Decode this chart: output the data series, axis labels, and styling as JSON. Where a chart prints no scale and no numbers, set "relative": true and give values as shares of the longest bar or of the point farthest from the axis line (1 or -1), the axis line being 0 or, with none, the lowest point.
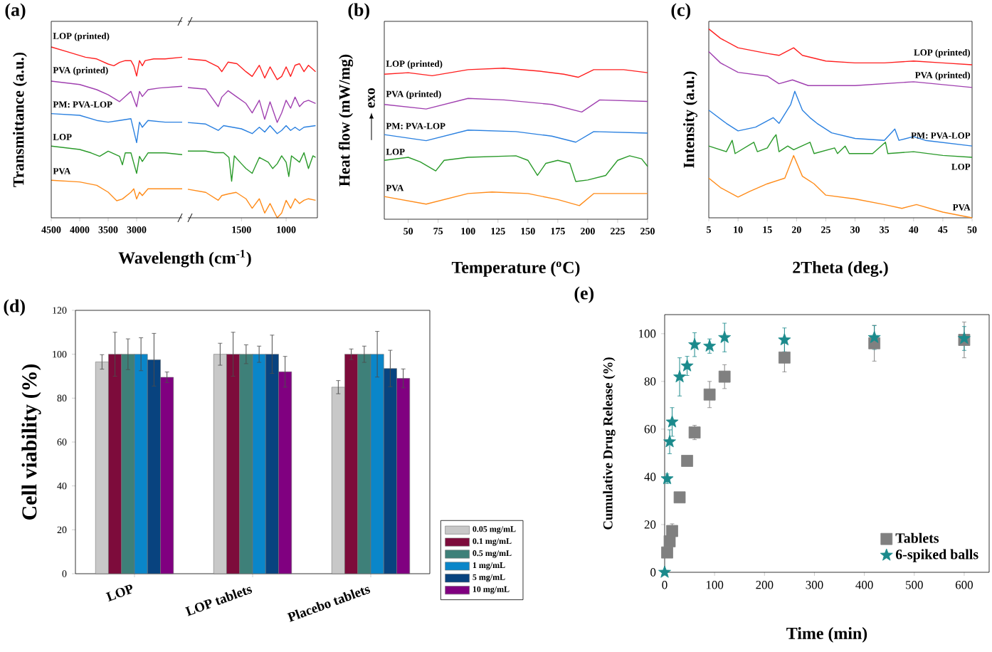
{
  "chart_data": [
    {
      "type": "line",
      "relative": true,
      "title": "(a)",
      "ylabel": "Transmittance (a.u.)",
      "xlabel": "Wavelength (cm$^{-1}$)",
      "xlim": [
        4500,
        2200
      ],
      "xticks": [
        4500,
        4000,
        3500,
        3000
      ],
      "series": [
        {
          "name": "LOP (printed)",
          "color": "#ff2020",
          "x": [
            4500,
            4200,
            3900,
            3700,
            3500,
            3400,
            3300,
            3200,
            3100,
            3050,
            3000,
            2950,
            2900,
            2850,
            2700,
            2500,
            2200
          ],
          "values": [
            1.0,
            0.97,
            0.94,
            0.93,
            0.9,
            0.89,
            0.91,
            0.92,
            0.92,
            0.89,
            0.83,
            0.92,
            0.89,
            0.92,
            0.93,
            0.93,
            0.94
          ]
        },
        {
          "name": "PVA (printed)",
          "color": "#a040b0",
          "x": [
            4500,
            4000,
            3700,
            3500,
            3300,
            3200,
            3100,
            3000,
            2950,
            2900,
            2800,
            2600,
            2200
          ],
          "values": [
            0.8,
            0.78,
            0.75,
            0.72,
            0.68,
            0.71,
            0.74,
            0.65,
            0.74,
            0.71,
            0.75,
            0.76,
            0.77
          ]
        },
        {
          "name": "PM: PVA-LOP",
          "color": "#2a80e0",
          "x": [
            4500,
            4000,
            3700,
            3500,
            3300,
            3100,
            3000,
            2950,
            2900,
            2800,
            2500,
            2200
          ],
          "values": [
            0.61,
            0.6,
            0.57,
            0.56,
            0.57,
            0.58,
            0.44,
            0.56,
            0.53,
            0.57,
            0.56,
            0.56
          ]
        },
        {
          "name": "LOP",
          "color": "#2a9a2a",
          "x": [
            4500,
            4000,
            3800,
            3650,
            3500,
            3300,
            3250,
            3200,
            3100,
            3000,
            2950,
            2900,
            2800,
            2500,
            2200
          ],
          "values": [
            0.42,
            0.4,
            0.38,
            0.36,
            0.39,
            0.36,
            0.31,
            0.38,
            0.38,
            0.26,
            0.36,
            0.33,
            0.38,
            0.38,
            0.37
          ]
        },
        {
          "name": "PVA",
          "color": "#ff8c1a",
          "x": [
            4500,
            4000,
            3700,
            3500,
            3350,
            3250,
            3100,
            3050,
            3000,
            2950,
            2900,
            2800,
            2500,
            2200
          ],
          "values": [
            0.22,
            0.21,
            0.19,
            0.15,
            0.1,
            0.11,
            0.15,
            0.17,
            0.11,
            0.15,
            0.13,
            0.17,
            0.17,
            0.17
          ]
        }
      ]
    },
    {
      "type": "line",
      "relative": true,
      "xlim": [
        2100,
        650
      ],
      "xticks": [
        1500,
        1000
      ],
      "series": [
        {
          "color": "#ff2020",
          "x": [
            2100,
            1900,
            1760,
            1720,
            1650,
            1550,
            1450,
            1380,
            1300,
            1240,
            1180,
            1100,
            1050,
            1000,
            950,
            900,
            850,
            800,
            750,
            670
          ],
          "values": [
            1.0,
            0.99,
            0.95,
            0.92,
            0.98,
            0.97,
            0.92,
            0.89,
            0.96,
            0.88,
            0.95,
            0.87,
            0.89,
            0.95,
            0.89,
            0.96,
            0.97,
            0.92,
            0.96,
            0.92
          ]
        },
        {
          "color": "#a040b0",
          "x": [
            2100,
            1900,
            1760,
            1720,
            1650,
            1550,
            1450,
            1380,
            1300,
            1240,
            1180,
            1100,
            1050,
            1000,
            950,
            900,
            850,
            800,
            750,
            670
          ],
          "values": [
            0.82,
            0.81,
            0.7,
            0.76,
            0.8,
            0.76,
            0.72,
            0.66,
            0.74,
            0.62,
            0.73,
            0.6,
            0.66,
            0.74,
            0.69,
            0.76,
            0.7,
            0.73,
            0.74,
            0.72
          ]
        },
        {
          "color": "#2a80e0",
          "x": [
            2100,
            1900,
            1760,
            1700,
            1600,
            1500,
            1380,
            1300,
            1240,
            1180,
            1100,
            1050,
            1000,
            950,
            900,
            850,
            800,
            670
          ],
          "values": [
            0.6,
            0.59,
            0.55,
            0.58,
            0.57,
            0.56,
            0.53,
            0.57,
            0.54,
            0.58,
            0.53,
            0.55,
            0.58,
            0.55,
            0.57,
            0.55,
            0.57,
            0.58
          ]
        },
        {
          "color": "#2a9a2a",
          "x": [
            2100,
            1900,
            1800,
            1700,
            1640,
            1610,
            1580,
            1500,
            1450,
            1380,
            1300,
            1200,
            1150,
            1100,
            1050,
            1000,
            970,
            940,
            850,
            800,
            750,
            700,
            670
          ],
          "values": [
            0.42,
            0.42,
            0.41,
            0.41,
            0.38,
            0.23,
            0.39,
            0.34,
            0.31,
            0.28,
            0.38,
            0.35,
            0.31,
            0.34,
            0.39,
            0.35,
            0.26,
            0.39,
            0.35,
            0.41,
            0.31,
            0.39,
            0.38
          ]
        },
        {
          "color": "#ff8c1a",
          "x": [
            2100,
            1900,
            1760,
            1720,
            1650,
            1560,
            1450,
            1380,
            1300,
            1240,
            1180,
            1100,
            1050,
            1000,
            950,
            900,
            850,
            800,
            750,
            670
          ],
          "values": [
            0.18,
            0.16,
            0.11,
            0.14,
            0.15,
            0.16,
            0.12,
            0.06,
            0.12,
            0.03,
            0.09,
            0.0,
            0.03,
            0.11,
            0.06,
            0.12,
            0.09,
            0.11,
            0.12,
            0.11
          ]
        }
      ]
    },
    {
      "type": "line",
      "relative": true,
      "title": "(b)",
      "ylabel": "Heat flow (mW/mg)",
      "xlabel": "Temperature ($^{o}$C)",
      "annotations": [
        "exo"
      ],
      "xlim": [
        30,
        250
      ],
      "xticks": [
        50,
        75,
        100,
        125,
        150,
        175,
        200,
        225,
        250
      ],
      "series": [
        {
          "name": "LOP (printed)",
          "color": "#ff2020",
          "x": [
            30,
            50,
            70,
            100,
            130,
            160,
            180,
            192,
            205,
            230,
            250
          ],
          "values": [
            0.96,
            0.97,
            0.95,
            0.99,
            1.0,
            0.98,
            0.96,
            0.94,
            0.99,
            0.99,
            0.97
          ]
        },
        {
          "name": "PVA (printed)",
          "color": "#a040b0",
          "x": [
            30,
            65,
            100,
            130,
            170,
            195,
            210,
            250
          ],
          "values": [
            0.76,
            0.73,
            0.8,
            0.79,
            0.76,
            0.71,
            0.79,
            0.78
          ]
        },
        {
          "name": "PM: PVA-LOP",
          "color": "#2a80e0",
          "x": [
            30,
            65,
            100,
            140,
            170,
            190,
            205,
            250
          ],
          "values": [
            0.56,
            0.52,
            0.59,
            0.58,
            0.55,
            0.51,
            0.58,
            0.57
          ]
        },
        {
          "name": "LOP",
          "color": "#2a9a2a",
          "x": [
            30,
            50,
            60,
            73,
            80,
            100,
            140,
            150,
            158,
            165,
            175,
            185,
            190,
            200,
            215,
            225,
            235,
            245,
            250
          ],
          "values": [
            0.39,
            0.41,
            0.38,
            0.32,
            0.39,
            0.41,
            0.42,
            0.39,
            0.29,
            0.37,
            0.39,
            0.37,
            0.25,
            0.26,
            0.29,
            0.39,
            0.42,
            0.4,
            0.35
          ]
        },
        {
          "name": "PVA",
          "color": "#ff8c1a",
          "x": [
            30,
            65,
            100,
            120,
            150,
            175,
            193,
            205,
            250
          ],
          "values": [
            0.15,
            0.1,
            0.17,
            0.18,
            0.17,
            0.13,
            0.09,
            0.17,
            0.17
          ]
        }
      ]
    },
    {
      "type": "line",
      "relative": true,
      "title": "(c)",
      "ylabel": "Intensity (a.u.)",
      "xlabel": "2Theta (deg.)",
      "xlim": [
        5,
        50
      ],
      "xticks": [
        5,
        10,
        15,
        20,
        25,
        30,
        35,
        40,
        45,
        50
      ],
      "series": [
        {
          "name": "LOP (printed)",
          "color": "#ff2020",
          "x": [
            5,
            7,
            10,
            15,
            17,
            19.5,
            21,
            25,
            30,
            35,
            40,
            45,
            50
          ],
          "values": [
            1.0,
            0.95,
            0.9,
            0.87,
            0.86,
            0.9,
            0.86,
            0.83,
            0.82,
            0.82,
            0.83,
            0.82,
            0.81
          ]
        },
        {
          "name": "PVA (printed)",
          "color": "#a040b0",
          "x": [
            5,
            7,
            10,
            15,
            17,
            19.3,
            22,
            30,
            40,
            50
          ],
          "values": [
            0.88,
            0.82,
            0.77,
            0.75,
            0.71,
            0.73,
            0.7,
            0.7,
            0.72,
            0.69
          ]
        },
        {
          "name": "PM: PVA-LOP",
          "color": "#2a80e0",
          "x": [
            5,
            8,
            10,
            13,
            16,
            17,
            19,
            19.7,
            21,
            22.3,
            23.5,
            26,
            30,
            35,
            36.8,
            37.5,
            40,
            42,
            50
          ],
          "values": [
            0.57,
            0.5,
            0.46,
            0.48,
            0.53,
            0.5,
            0.6,
            0.67,
            0.57,
            0.53,
            0.5,
            0.45,
            0.42,
            0.41,
            0.47,
            0.41,
            0.43,
            0.41,
            0.38
          ]
        },
        {
          "name": "LOP",
          "color": "#2a9a2a",
          "x": [
            5,
            8,
            9,
            9.5,
            12.7,
            13.3,
            15,
            16,
            16.5,
            17,
            18.5,
            19.5,
            22.3,
            23,
            26.5,
            27,
            28.3,
            29,
            33,
            35.2,
            35.6,
            40,
            45,
            50
          ],
          "values": [
            0.38,
            0.35,
            0.41,
            0.34,
            0.4,
            0.35,
            0.37,
            0.42,
            0.44,
            0.35,
            0.38,
            0.36,
            0.4,
            0.34,
            0.37,
            0.34,
            0.38,
            0.34,
            0.34,
            0.4,
            0.34,
            0.35,
            0.33,
            0.32
          ]
        },
        {
          "name": "PVA",
          "color": "#ff8c1a",
          "x": [
            5,
            7,
            10,
            12,
            15,
            18,
            19.5,
            21,
            23,
            25,
            30,
            35,
            38,
            40.5,
            45,
            50
          ],
          "values": [
            0.21,
            0.16,
            0.11,
            0.14,
            0.18,
            0.21,
            0.33,
            0.22,
            0.18,
            0.12,
            0.1,
            0.07,
            0.05,
            0.07,
            0.03,
            0.0
          ]
        }
      ]
    },
    {
      "type": "bar",
      "title": "(d)",
      "ylabel": "Cell viability (%)",
      "categories": [
        "LOP",
        "LOP tablets",
        "Placebo tablets"
      ],
      "ylim": [
        0,
        120
      ],
      "yticks": [
        0,
        20,
        40,
        60,
        80,
        100,
        120
      ],
      "legend": "right",
      "series": [
        {
          "name": "0.05 mg/mL",
          "color": "#c8c8c8",
          "values": [
            96.5,
            100,
            85
          ],
          "errors": [
            3.3,
            5,
            3
          ]
        },
        {
          "name": "0.1 mg/mL",
          "color": "#7d0b3b",
          "values": [
            100,
            100,
            100
          ],
          "errors": [
            10,
            10,
            2.4
          ]
        },
        {
          "name": "0.5 mg/mL",
          "color": "#3e8079",
          "values": [
            100,
            100,
            100
          ],
          "errors": [
            7,
            4.3,
            3.7
          ]
        },
        {
          "name": "1 mg/mL",
          "color": "#0a86c9",
          "values": [
            100,
            100,
            100
          ],
          "errors": [
            7.5,
            3.7,
            10.4
          ]
        },
        {
          "name": "5 mg/mL",
          "color": "#08437f",
          "values": [
            97.5,
            100,
            93.5
          ],
          "errors": [
            12,
            8.7,
            8.3
          ]
        },
        {
          "name": "10 mg/mL",
          "color": "#800080",
          "values": [
            89.5,
            92,
            89
          ],
          "errors": [
            2.4,
            7,
            4.3
          ]
        }
      ]
    },
    {
      "type": "scatter",
      "title": "(e)",
      "xlabel": "Time (min)",
      "ylabel": "Cumulative Drug Release (%)",
      "xlim": [
        0,
        650
      ],
      "xticks": [
        0,
        100,
        200,
        300,
        400,
        500,
        600
      ],
      "ylim": [
        0,
        108
      ],
      "yticks": [
        0,
        20,
        40,
        60,
        80,
        100
      ],
      "legend": "bottom right",
      "series": [
        {
          "name": "Tablets",
          "color": "#808080",
          "marker": "square",
          "x": [
            5,
            10,
            15,
            30,
            45,
            60,
            90,
            120,
            240,
            420,
            600
          ],
          "values": [
            8.3,
            13,
            17.3,
            31.4,
            46.7,
            58.6,
            74.5,
            82,
            90,
            96,
            97.4
          ],
          "errors": [
            2,
            3,
            3,
            2,
            2,
            3,
            5.5,
            5,
            6,
            7.5,
            7.5
          ]
        },
        {
          "name": "6-spiked balls",
          "color": "#1b8a8c",
          "marker": "star",
          "x": [
            0,
            5,
            10,
            15,
            30,
            45,
            60,
            90,
            120,
            240,
            420,
            600
          ],
          "values": [
            0,
            39.2,
            54.7,
            63,
            81.9,
            86.5,
            95.4,
            94.8,
            98.4,
            97.4,
            98.4,
            98
          ],
          "errors": [
            0,
            2,
            5,
            6,
            8,
            4,
            5,
            3,
            6,
            5,
            5,
            5
          ]
        }
      ]
    }
  ]
}
